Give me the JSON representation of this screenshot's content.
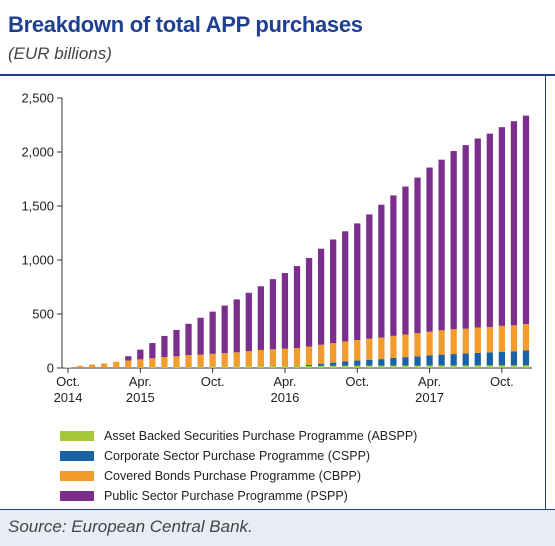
{
  "header": {
    "title": "Breakdown of total APP purchases",
    "subtitle": "(EUR billions)"
  },
  "footer": {
    "source": "Source: European Central Bank."
  },
  "chart_data": {
    "type": "bar",
    "stacked": true,
    "categories": [
      "2014-10",
      "2014-11",
      "2014-12",
      "2015-01",
      "2015-02",
      "2015-03",
      "2015-04",
      "2015-05",
      "2015-06",
      "2015-07",
      "2015-08",
      "2015-09",
      "2015-10",
      "2015-11",
      "2015-12",
      "2016-01",
      "2016-02",
      "2016-03",
      "2016-04",
      "2016-05",
      "2016-06",
      "2016-07",
      "2016-08",
      "2016-09",
      "2016-10",
      "2016-11",
      "2016-12",
      "2017-01",
      "2017-02",
      "2017-03",
      "2017-04",
      "2017-05",
      "2017-06",
      "2017-07",
      "2017-08",
      "2017-09",
      "2017-10",
      "2017-11",
      "2017-12"
    ],
    "x_tick_labels": [
      {
        "category": "2014-10",
        "lines": [
          "Oct.",
          "2014"
        ]
      },
      {
        "category": "2015-04",
        "lines": [
          "Apr.",
          "2015"
        ]
      },
      {
        "category": "2015-10",
        "lines": [
          "Oct."
        ]
      },
      {
        "category": "2016-04",
        "lines": [
          "Apr.",
          "2016"
        ]
      },
      {
        "category": "2016-10",
        "lines": [
          "Oct."
        ]
      },
      {
        "category": "2017-04",
        "lines": [
          "Apr.",
          "2017"
        ]
      },
      {
        "category": "2017-10",
        "lines": [
          "Oct."
        ]
      }
    ],
    "y_tick_labels": [
      "0",
      "500",
      "1,000",
      "1,500",
      "2,000",
      "2,500"
    ],
    "y_ticks": [
      0,
      500,
      1000,
      1500,
      2000,
      2500
    ],
    "ylim": [
      0,
      2500
    ],
    "grid": false,
    "legend_placement": "bottom",
    "series": [
      {
        "name": "Asset Backed Securities Purchase Programme (ABSPP)",
        "color": "#a6c93a",
        "values": [
          0,
          1,
          2,
          2,
          3,
          4,
          5,
          6,
          7,
          8,
          9,
          10,
          12,
          13,
          15,
          16,
          17,
          18,
          19,
          19,
          19,
          20,
          20,
          21,
          21,
          22,
          22,
          23,
          23,
          23,
          24,
          24,
          24,
          24,
          25,
          25,
          25,
          25,
          25
        ]
      },
      {
        "name": "Corporate Sector Purchase Programme (CSPP)",
        "color": "#1a62a8",
        "values": [
          0,
          0,
          0,
          0,
          0,
          0,
          0,
          0,
          0,
          0,
          0,
          0,
          0,
          0,
          0,
          0,
          0,
          0,
          0,
          0,
          10,
          20,
          30,
          40,
          48,
          55,
          60,
          70,
          77,
          85,
          92,
          100,
          105,
          110,
          115,
          120,
          125,
          130,
          137
        ]
      },
      {
        "name": "Covered Bonds Purchase Programme (CBPP)",
        "color": "#f39c2b",
        "values": [
          5,
          20,
          30,
          40,
          55,
          65,
          75,
          85,
          95,
          100,
          110,
          115,
          120,
          125,
          130,
          140,
          150,
          155,
          160,
          165,
          170,
          175,
          180,
          185,
          190,
          195,
          200,
          205,
          210,
          215,
          220,
          225,
          230,
          230,
          235,
          235,
          240,
          240,
          245
        ]
      },
      {
        "name": "Public Sector Purchase Programme (PSPP)",
        "color": "#7b2e8e",
        "values": [
          0,
          0,
          0,
          0,
          0,
          40,
          90,
          140,
          195,
          245,
          290,
          340,
          390,
          440,
          490,
          540,
          590,
          650,
          700,
          760,
          820,
          890,
          960,
          1020,
          1080,
          1150,
          1230,
          1300,
          1370,
          1440,
          1520,
          1580,
          1650,
          1700,
          1750,
          1790,
          1840,
          1890,
          1930
        ]
      }
    ]
  },
  "icons": {
    "legend_swatch_abspp": "swatch-abspp",
    "legend_swatch_cspp": "swatch-cspp",
    "legend_swatch_cbpp": "swatch-cbpp",
    "legend_swatch_pspp": "swatch-pspp"
  }
}
